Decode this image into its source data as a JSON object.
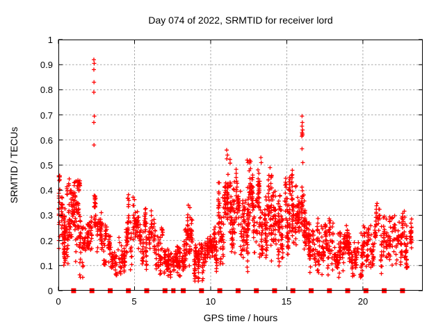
{
  "figure": {
    "title": "Day 074 of 2022, SRMTID for receiver lord",
    "xlabel": "GPS time / hours",
    "ylabel": "SRMTID / TECUs"
  },
  "chart_data": {
    "type": "scatter",
    "title": "Day 074 of 2022, SRMTID for receiver lord",
    "xlabel": "GPS time / hours",
    "ylabel": "SRMTID / TECUs",
    "xlim": [
      0,
      23.93
    ],
    "ylim": [
      0,
      1
    ],
    "xticks": [
      0,
      5,
      10,
      15,
      20
    ],
    "yticks": [
      0,
      0.1,
      0.2,
      0.3,
      0.4,
      0.5,
      0.6,
      0.7,
      0.8,
      0.9,
      1
    ],
    "grid": true,
    "legend": "none",
    "marker": "plus",
    "color": "#ff0000",
    "grid_color": "#a6a6a6",
    "border_color": "#000000",
    "point_clusters_t0_t1_ymin_ymax_n": [
      [
        0.0,
        0.45,
        0.13,
        0.46,
        70
      ],
      [
        0.35,
        1.0,
        0.1,
        0.4,
        80
      ],
      [
        0.55,
        0.78,
        0.38,
        0.47,
        8
      ],
      [
        1.0,
        1.65,
        0.05,
        0.44,
        90
      ],
      [
        1.3,
        1.5,
        0.36,
        0.45,
        10
      ],
      [
        1.65,
        2.25,
        0.1,
        0.3,
        55
      ],
      [
        2.28,
        2.45,
        0.18,
        0.47,
        26
      ],
      [
        2.5,
        3.2,
        0.1,
        0.32,
        65
      ],
      [
        3.2,
        4.4,
        0.06,
        0.22,
        100
      ],
      [
        4.4,
        5.15,
        0.08,
        0.385,
        75
      ],
      [
        5.15,
        5.75,
        0.1,
        0.35,
        60
      ],
      [
        5.75,
        6.35,
        0.08,
        0.32,
        55
      ],
      [
        6.35,
        7.05,
        0.05,
        0.25,
        60
      ],
      [
        7.05,
        8.2,
        0.025,
        0.18,
        115
      ],
      [
        8.2,
        8.85,
        0.08,
        0.35,
        70
      ],
      [
        8.85,
        9.75,
        0.035,
        0.19,
        95
      ],
      [
        9.75,
        10.45,
        0.07,
        0.26,
        85
      ],
      [
        10.45,
        11.0,
        0.1,
        0.43,
        75
      ],
      [
        11.0,
        11.35,
        0.22,
        0.56,
        45
      ],
      [
        11.35,
        12.05,
        0.14,
        0.5,
        85
      ],
      [
        12.05,
        12.45,
        0.05,
        0.36,
        55
      ],
      [
        12.42,
        12.8,
        0.24,
        0.52,
        70
      ],
      [
        12.8,
        13.45,
        0.13,
        0.52,
        85
      ],
      [
        13.45,
        14.05,
        0.08,
        0.49,
        75
      ],
      [
        14.05,
        14.65,
        0.05,
        0.42,
        75
      ],
      [
        14.65,
        15.25,
        0.13,
        0.46,
        75
      ],
      [
        15.25,
        15.75,
        0.14,
        0.5,
        65
      ],
      [
        15.75,
        16.2,
        0.16,
        0.46,
        65
      ],
      [
        16.2,
        17.05,
        0.07,
        0.33,
        85
      ],
      [
        17.05,
        18.05,
        0.05,
        0.29,
        95
      ],
      [
        18.05,
        19.05,
        0.05,
        0.26,
        95
      ],
      [
        19.05,
        20.05,
        0.05,
        0.23,
        95
      ],
      [
        20.05,
        20.7,
        0.07,
        0.26,
        60
      ],
      [
        20.75,
        21.15,
        0.18,
        0.375,
        30
      ],
      [
        21.15,
        22.3,
        0.06,
        0.3,
        85
      ],
      [
        22.3,
        22.85,
        0.09,
        0.34,
        55
      ],
      [
        22.85,
        23.2,
        0.09,
        0.3,
        40
      ]
    ],
    "highlight_points": [
      [
        2.33,
        0.92
      ],
      [
        2.35,
        0.905
      ],
      [
        2.33,
        0.88
      ],
      [
        2.34,
        0.83
      ],
      [
        2.33,
        0.79
      ],
      [
        2.36,
        0.695
      ],
      [
        2.33,
        0.67
      ],
      [
        2.34,
        0.58
      ],
      [
        11.05,
        0.56
      ],
      [
        11.1,
        0.54
      ],
      [
        11.06,
        0.525
      ],
      [
        12.4,
        0.52
      ],
      [
        12.45,
        0.51
      ],
      [
        12.62,
        0.515
      ],
      [
        13.3,
        0.53
      ],
      [
        13.32,
        0.51
      ],
      [
        13.9,
        0.49
      ],
      [
        16.0,
        0.695
      ],
      [
        16.02,
        0.67
      ],
      [
        16.0,
        0.655
      ],
      [
        16.04,
        0.64
      ],
      [
        16.0,
        0.63
      ],
      [
        16.02,
        0.625
      ],
      [
        16.03,
        0.62
      ],
      [
        15.99,
        0.615
      ],
      [
        16.0,
        0.565
      ],
      [
        16.05,
        0.51
      ]
    ],
    "event_markers": {
      "symbol": "filled-square",
      "color": "#ff0000",
      "y": 0,
      "hours": [
        1.0,
        2.2,
        3.4,
        4.6,
        5.8,
        7.0,
        8.2,
        9.4,
        10.6,
        11.8,
        13.0,
        14.2,
        15.4,
        16.6,
        17.8,
        19.0,
        20.2,
        21.4,
        22.6
      ],
      "thin_hours": [
        7.48,
        7.62
      ]
    }
  }
}
